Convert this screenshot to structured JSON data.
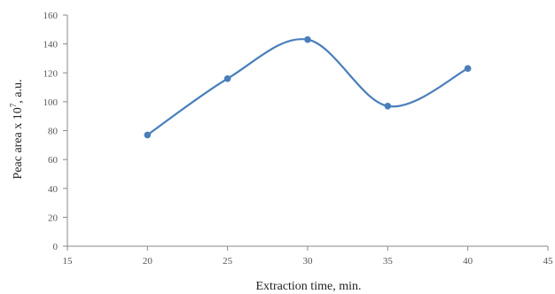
{
  "chart_data": {
    "type": "line",
    "smooth": true,
    "title": "",
    "xlabel": "Extraction time, min.",
    "ylabel": {
      "before": "Peac area x 10",
      "sup": "7",
      "after": ", a.u."
    },
    "xlim": [
      15,
      45
    ],
    "ylim": [
      0,
      160
    ],
    "xticks": [
      15,
      20,
      25,
      30,
      35,
      40,
      45
    ],
    "yticks": [
      0,
      20,
      40,
      60,
      80,
      100,
      120,
      140,
      160
    ],
    "grid": false,
    "legend": "none",
    "series": [
      {
        "x": [
          20,
          25,
          30,
          35,
          40
        ],
        "y": [
          77,
          116,
          143,
          97,
          123
        ],
        "color": "#4a7ebb"
      }
    ]
  }
}
